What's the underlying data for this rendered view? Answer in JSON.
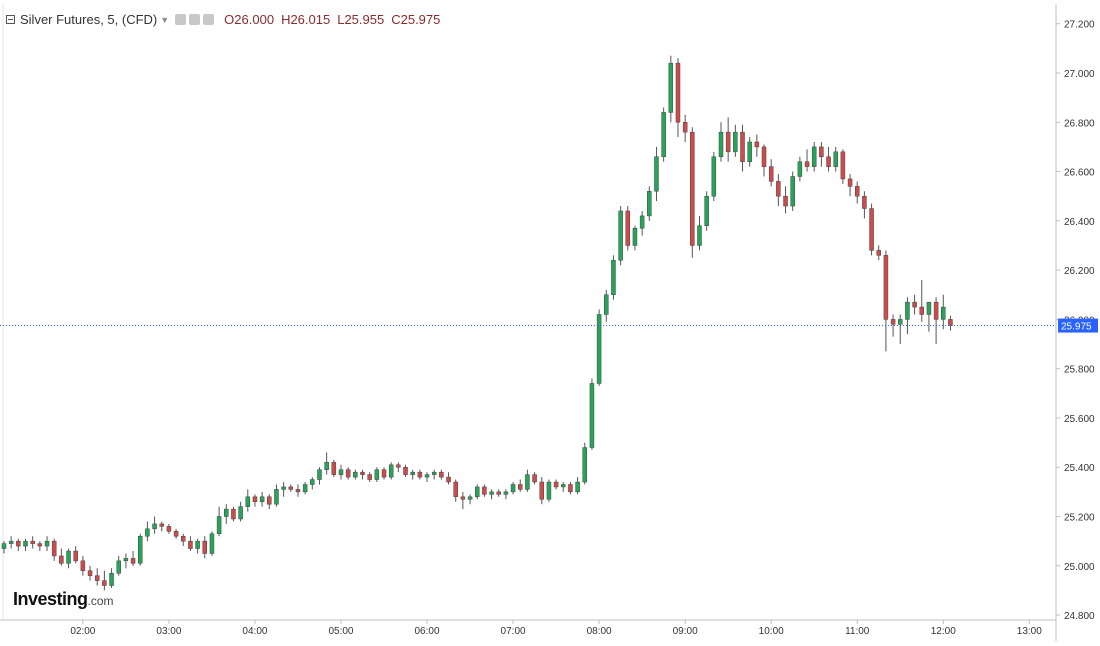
{
  "legend": {
    "symbol": "Silver Futures, 5, (CFD)",
    "open_label": "O",
    "open": "26.000",
    "high_label": "H",
    "high": "26.015",
    "low_label": "L",
    "low": "25.955",
    "close_label": "C",
    "close": "25.975"
  },
  "brand": {
    "name": "Investing",
    "suffix": ".com"
  },
  "colors": {
    "up": "#26a55a",
    "down": "#cf4b4b",
    "wick": "#555555",
    "price_line": "#2962ff",
    "price_tag": "#2962ff"
  },
  "chart_data": {
    "type": "candlestick",
    "ylim": [
      24.78,
      27.28
    ],
    "y_ticks": [
      "24.800",
      "25.000",
      "25.200",
      "25.400",
      "25.600",
      "25.800",
      "26.000",
      "26.200",
      "26.400",
      "26.600",
      "26.800",
      "27.000",
      "27.200"
    ],
    "x_ticks": [
      "02:00",
      "03:00",
      "04:00",
      "05:00",
      "06:00",
      "07:00",
      "08:00",
      "09:00",
      "10:00",
      "11:00",
      "12:00",
      "13:00"
    ],
    "x_tick_bar_index": [
      11,
      23,
      35,
      47,
      59,
      71,
      83,
      95,
      107,
      119,
      131,
      143
    ],
    "last_price": "25.975",
    "last_price_value": 25.975,
    "grid": false,
    "candles": [
      [
        25.07,
        25.1,
        25.05,
        25.09
      ],
      [
        25.09,
        25.12,
        25.07,
        25.1
      ],
      [
        25.1,
        25.11,
        25.06,
        25.08
      ],
      [
        25.08,
        25.11,
        25.06,
        25.1
      ],
      [
        25.1,
        25.12,
        25.07,
        25.09
      ],
      [
        25.09,
        25.1,
        25.06,
        25.08
      ],
      [
        25.08,
        25.12,
        25.06,
        25.1
      ],
      [
        25.1,
        25.11,
        25.02,
        25.04
      ],
      [
        25.04,
        25.07,
        25.0,
        25.01
      ],
      [
        25.01,
        25.07,
        24.99,
        25.06
      ],
      [
        25.06,
        25.08,
        25.01,
        25.02
      ],
      [
        25.02,
        25.04,
        24.96,
        24.98
      ],
      [
        24.98,
        25.0,
        24.94,
        24.96
      ],
      [
        24.96,
        24.99,
        24.92,
        24.94
      ],
      [
        24.94,
        24.98,
        24.9,
        24.92
      ],
      [
        24.92,
        24.99,
        24.91,
        24.97
      ],
      [
        24.97,
        25.04,
        24.96,
        25.02
      ],
      [
        25.02,
        25.05,
        24.99,
        25.03
      ],
      [
        25.03,
        25.06,
        25.0,
        25.01
      ],
      [
        25.01,
        25.13,
        25.0,
        25.12
      ],
      [
        25.12,
        25.18,
        25.1,
        25.15
      ],
      [
        25.15,
        25.2,
        25.13,
        25.17
      ],
      [
        25.17,
        25.18,
        25.14,
        25.16
      ],
      [
        25.16,
        25.17,
        25.13,
        25.14
      ],
      [
        25.14,
        25.15,
        25.11,
        25.12
      ],
      [
        25.12,
        25.13,
        25.08,
        25.1
      ],
      [
        25.1,
        25.12,
        25.06,
        25.07
      ],
      [
        25.07,
        25.11,
        25.05,
        25.1
      ],
      [
        25.1,
        25.12,
        25.03,
        25.05
      ],
      [
        25.05,
        25.14,
        25.04,
        25.13
      ],
      [
        25.13,
        25.24,
        25.12,
        25.2
      ],
      [
        25.2,
        25.25,
        25.17,
        25.23
      ],
      [
        25.23,
        25.24,
        25.18,
        25.19
      ],
      [
        25.19,
        25.26,
        25.18,
        25.24
      ],
      [
        25.24,
        25.31,
        25.22,
        25.28
      ],
      [
        25.28,
        25.29,
        25.24,
        25.26
      ],
      [
        25.26,
        25.3,
        25.24,
        25.28
      ],
      [
        25.28,
        25.29,
        25.23,
        25.25
      ],
      [
        25.25,
        25.33,
        25.24,
        25.31
      ],
      [
        25.31,
        25.34,
        25.28,
        25.32
      ],
      [
        25.32,
        25.33,
        25.3,
        25.31
      ],
      [
        25.31,
        25.33,
        25.28,
        25.3
      ],
      [
        25.3,
        25.34,
        25.29,
        25.33
      ],
      [
        25.33,
        25.36,
        25.31,
        25.35
      ],
      [
        25.35,
        25.4,
        25.33,
        25.39
      ],
      [
        25.39,
        25.46,
        25.37,
        25.42
      ],
      [
        25.42,
        25.43,
        25.36,
        25.37
      ],
      [
        25.37,
        25.41,
        25.35,
        25.39
      ],
      [
        25.39,
        25.4,
        25.35,
        25.36
      ],
      [
        25.36,
        25.39,
        25.35,
        25.38
      ],
      [
        25.38,
        25.39,
        25.35,
        25.37
      ],
      [
        25.37,
        25.38,
        25.34,
        25.35
      ],
      [
        25.35,
        25.4,
        25.34,
        25.39
      ],
      [
        25.39,
        25.4,
        25.35,
        25.36
      ],
      [
        25.36,
        25.42,
        25.35,
        25.41
      ],
      [
        25.41,
        25.42,
        25.38,
        25.4
      ],
      [
        25.4,
        25.41,
        25.36,
        25.37
      ],
      [
        25.37,
        25.39,
        25.35,
        25.38
      ],
      [
        25.38,
        25.39,
        25.35,
        25.36
      ],
      [
        25.36,
        25.38,
        25.34,
        25.37
      ],
      [
        25.37,
        25.39,
        25.35,
        25.38
      ],
      [
        25.38,
        25.39,
        25.35,
        25.36
      ],
      [
        25.36,
        25.38,
        25.33,
        25.34
      ],
      [
        25.34,
        25.35,
        25.26,
        25.28
      ],
      [
        25.28,
        25.3,
        25.23,
        25.27
      ],
      [
        25.27,
        25.29,
        25.25,
        25.28
      ],
      [
        25.28,
        25.33,
        25.27,
        25.32
      ],
      [
        25.32,
        25.33,
        25.28,
        25.29
      ],
      [
        25.29,
        25.31,
        25.27,
        25.3
      ],
      [
        25.3,
        25.31,
        25.28,
        25.29
      ],
      [
        25.29,
        25.31,
        25.27,
        25.3
      ],
      [
        25.3,
        25.34,
        25.29,
        25.33
      ],
      [
        25.33,
        25.35,
        25.3,
        25.31
      ],
      [
        25.31,
        25.39,
        25.3,
        25.37
      ],
      [
        25.37,
        25.38,
        25.33,
        25.34
      ],
      [
        25.34,
        25.36,
        25.25,
        25.27
      ],
      [
        25.27,
        25.35,
        25.26,
        25.34
      ],
      [
        25.34,
        25.35,
        25.31,
        25.32
      ],
      [
        25.32,
        25.34,
        25.3,
        25.33
      ],
      [
        25.33,
        25.34,
        25.29,
        25.3
      ],
      [
        25.3,
        25.36,
        25.29,
        25.34
      ],
      [
        25.34,
        25.5,
        25.33,
        25.48
      ],
      [
        25.48,
        25.76,
        25.47,
        25.74
      ],
      [
        25.74,
        26.04,
        25.73,
        26.02
      ],
      [
        26.02,
        26.12,
        25.99,
        26.1
      ],
      [
        26.1,
        26.26,
        26.08,
        26.24
      ],
      [
        26.24,
        26.46,
        26.22,
        26.44
      ],
      [
        26.44,
        26.46,
        26.28,
        26.3
      ],
      [
        26.3,
        26.38,
        26.28,
        26.37
      ],
      [
        26.37,
        26.44,
        26.34,
        26.42
      ],
      [
        26.42,
        26.54,
        26.4,
        26.52
      ],
      [
        26.52,
        26.7,
        26.48,
        26.66
      ],
      [
        26.66,
        26.86,
        26.64,
        26.84
      ],
      [
        26.84,
        27.07,
        26.8,
        27.04
      ],
      [
        27.04,
        27.06,
        26.74,
        26.8
      ],
      [
        26.8,
        26.83,
        26.72,
        26.76
      ],
      [
        26.76,
        26.78,
        26.25,
        26.3
      ],
      [
        26.3,
        26.42,
        26.28,
        26.38
      ],
      [
        26.38,
        26.52,
        26.36,
        26.5
      ],
      [
        26.5,
        26.68,
        26.48,
        26.66
      ],
      [
        26.66,
        26.8,
        26.64,
        26.76
      ],
      [
        26.76,
        26.82,
        26.64,
        26.68
      ],
      [
        26.68,
        26.79,
        26.66,
        26.76
      ],
      [
        26.76,
        26.79,
        26.6,
        26.64
      ],
      [
        26.64,
        26.74,
        26.62,
        26.72
      ],
      [
        26.72,
        26.75,
        26.66,
        26.7
      ],
      [
        26.7,
        26.71,
        26.58,
        26.62
      ],
      [
        26.62,
        26.65,
        26.54,
        26.56
      ],
      [
        26.56,
        26.59,
        26.46,
        26.5
      ],
      [
        26.5,
        26.54,
        26.43,
        26.46
      ],
      [
        26.46,
        26.6,
        26.44,
        26.58
      ],
      [
        26.58,
        26.66,
        26.56,
        26.64
      ],
      [
        26.64,
        26.69,
        26.6,
        26.62
      ],
      [
        26.62,
        26.72,
        26.6,
        26.7
      ],
      [
        26.7,
        26.72,
        26.62,
        26.66
      ],
      [
        26.66,
        26.7,
        26.6,
        26.62
      ],
      [
        26.62,
        26.7,
        26.6,
        26.68
      ],
      [
        26.68,
        26.69,
        26.55,
        26.57
      ],
      [
        26.57,
        26.59,
        26.5,
        26.54
      ],
      [
        26.54,
        26.56,
        26.47,
        26.5
      ],
      [
        26.5,
        26.52,
        26.41,
        26.45
      ],
      [
        26.45,
        26.47,
        26.26,
        26.28
      ],
      [
        26.28,
        26.3,
        26.24,
        26.26
      ],
      [
        26.26,
        26.28,
        25.87,
        26.0
      ],
      [
        26.0,
        26.02,
        25.93,
        25.98
      ],
      [
        25.98,
        26.02,
        25.9,
        26.0
      ],
      [
        26.0,
        26.09,
        25.94,
        26.07
      ],
      [
        26.07,
        26.1,
        26.02,
        26.05
      ],
      [
        26.05,
        26.16,
        25.99,
        26.02
      ],
      [
        26.02,
        26.06,
        25.95,
        26.07
      ],
      [
        26.07,
        26.09,
        25.9,
        26.0
      ],
      [
        26.0,
        26.1,
        25.96,
        26.05
      ],
      [
        26.0,
        26.015,
        25.955,
        25.975
      ]
    ]
  }
}
